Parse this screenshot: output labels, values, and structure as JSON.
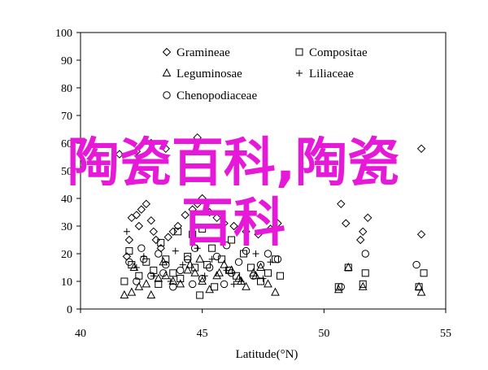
{
  "chart_data": {
    "type": "scatter",
    "title": "",
    "xlabel": "Latitude(°N)",
    "ylabel": "",
    "xlim": [
      40,
      55
    ],
    "ylim": [
      0,
      100
    ],
    "xticks": [
      40,
      45,
      50,
      55
    ],
    "yticks": [
      0,
      10,
      20,
      30,
      40,
      50,
      60,
      70,
      80,
      90,
      100
    ],
    "grid": false,
    "legend_position": "top",
    "series": [
      {
        "name": "Gramineae",
        "marker": "diamond",
        "points": [
          [
            41.9,
            19
          ],
          [
            42.0,
            25
          ],
          [
            42.1,
            33
          ],
          [
            42.3,
            34
          ],
          [
            42.4,
            30
          ],
          [
            42.5,
            36
          ],
          [
            42.7,
            38
          ],
          [
            42.9,
            32
          ],
          [
            43.0,
            28
          ],
          [
            43.1,
            25
          ],
          [
            43.3,
            22
          ],
          [
            43.6,
            26
          ],
          [
            43.8,
            28
          ],
          [
            44.0,
            30
          ],
          [
            44.3,
            34
          ],
          [
            44.6,
            36
          ],
          [
            44.8,
            38
          ],
          [
            45.0,
            40
          ],
          [
            45.3,
            35
          ],
          [
            45.6,
            33
          ],
          [
            45.9,
            31
          ],
          [
            46.3,
            30
          ],
          [
            46.8,
            28
          ],
          [
            47.3,
            27
          ],
          [
            47.8,
            29
          ],
          [
            48.1,
            31
          ],
          [
            50.7,
            38
          ],
          [
            50.9,
            31
          ],
          [
            51.5,
            25
          ],
          [
            51.6,
            28
          ],
          [
            51.8,
            33
          ],
          [
            54.0,
            27
          ],
          [
            54.0,
            58
          ],
          [
            41.6,
            56
          ],
          [
            42.3,
            57
          ],
          [
            42.9,
            60
          ],
          [
            43.5,
            58
          ],
          [
            44.8,
            62
          ]
        ]
      },
      {
        "name": "Compositae",
        "marker": "square",
        "points": [
          [
            41.8,
            10
          ],
          [
            42.1,
            16
          ],
          [
            42.4,
            12
          ],
          [
            42.7,
            17
          ],
          [
            43.0,
            14
          ],
          [
            43.2,
            9
          ],
          [
            43.5,
            18
          ],
          [
            43.8,
            13
          ],
          [
            44.1,
            11
          ],
          [
            44.4,
            19
          ],
          [
            44.7,
            15
          ],
          [
            44.9,
            5
          ],
          [
            45.2,
            16
          ],
          [
            45.5,
            8
          ],
          [
            45.8,
            18
          ],
          [
            46.1,
            14
          ],
          [
            46.4,
            12
          ],
          [
            46.7,
            20
          ],
          [
            47.0,
            15
          ],
          [
            47.4,
            10
          ],
          [
            47.7,
            13
          ],
          [
            48.0,
            18
          ],
          [
            48.2,
            12
          ],
          [
            50.6,
            8
          ],
          [
            51.0,
            15
          ],
          [
            51.6,
            9
          ],
          [
            51.7,
            13
          ],
          [
            53.9,
            8
          ],
          [
            54.1,
            13
          ],
          [
            42.0,
            21
          ],
          [
            43.3,
            24
          ],
          [
            44.6,
            27
          ],
          [
            45.4,
            22
          ],
          [
            46.2,
            25
          ],
          [
            44.0,
            28
          ],
          [
            45.0,
            29
          ]
        ]
      },
      {
        "name": "Leguminosae",
        "marker": "triangle",
        "points": [
          [
            41.8,
            5
          ],
          [
            42.1,
            6
          ],
          [
            42.4,
            8
          ],
          [
            42.7,
            9
          ],
          [
            42.9,
            5
          ],
          [
            43.2,
            11
          ],
          [
            43.5,
            12
          ],
          [
            43.8,
            10
          ],
          [
            44.1,
            9
          ],
          [
            44.4,
            14
          ],
          [
            44.7,
            13
          ],
          [
            45.0,
            10
          ],
          [
            45.3,
            7
          ],
          [
            45.6,
            12
          ],
          [
            45.9,
            16
          ],
          [
            46.2,
            14
          ],
          [
            46.5,
            11
          ],
          [
            46.8,
            8
          ],
          [
            47.1,
            13
          ],
          [
            47.4,
            15
          ],
          [
            47.7,
            9
          ],
          [
            48.0,
            6
          ],
          [
            50.6,
            7
          ],
          [
            51.0,
            15
          ],
          [
            51.6,
            8
          ],
          [
            53.9,
            8
          ],
          [
            54.0,
            6
          ],
          [
            42.2,
            15
          ],
          [
            43.4,
            17
          ],
          [
            44.5,
            16
          ],
          [
            45.7,
            13
          ],
          [
            46.6,
            10
          ],
          [
            47.2,
            12
          ],
          [
            44.9,
            18
          ]
        ]
      },
      {
        "name": "Liliaceae",
        "marker": "plus",
        "points": [
          [
            41.9,
            28
          ],
          [
            42.3,
            15
          ],
          [
            43.0,
            12
          ],
          [
            43.7,
            10
          ],
          [
            44.2,
            16
          ],
          [
            44.8,
            22
          ],
          [
            45.4,
            18
          ],
          [
            46.0,
            14
          ],
          [
            46.6,
            10
          ],
          [
            47.2,
            20
          ],
          [
            47.8,
            17
          ],
          [
            42.6,
            19
          ],
          [
            43.9,
            21
          ],
          [
            45.1,
            12
          ],
          [
            46.3,
            9
          ],
          [
            47.5,
            11
          ]
        ]
      },
      {
        "name": "Chenopodiaceae",
        "marker": "circle",
        "points": [
          [
            42.0,
            17
          ],
          [
            42.3,
            10
          ],
          [
            42.6,
            18
          ],
          [
            42.9,
            12
          ],
          [
            43.2,
            20
          ],
          [
            43.5,
            16
          ],
          [
            43.8,
            8
          ],
          [
            44.1,
            14
          ],
          [
            44.4,
            18
          ],
          [
            44.7,
            22
          ],
          [
            45.0,
            11
          ],
          [
            45.3,
            15
          ],
          [
            45.6,
            19
          ],
          [
            45.9,
            9
          ],
          [
            46.2,
            13
          ],
          [
            46.5,
            17
          ],
          [
            46.8,
            21
          ],
          [
            47.1,
            12
          ],
          [
            47.4,
            16
          ],
          [
            47.7,
            20
          ],
          [
            48.1,
            18
          ],
          [
            50.7,
            8
          ],
          [
            51.7,
            20
          ],
          [
            53.8,
            16
          ],
          [
            42.5,
            22
          ],
          [
            43.4,
            13
          ],
          [
            44.6,
            9
          ],
          [
            46.0,
            23
          ]
        ]
      }
    ]
  },
  "watermark": {
    "line1": "陶瓷百科,陶瓷",
    "line2": "百科",
    "color": "#e619d8"
  }
}
